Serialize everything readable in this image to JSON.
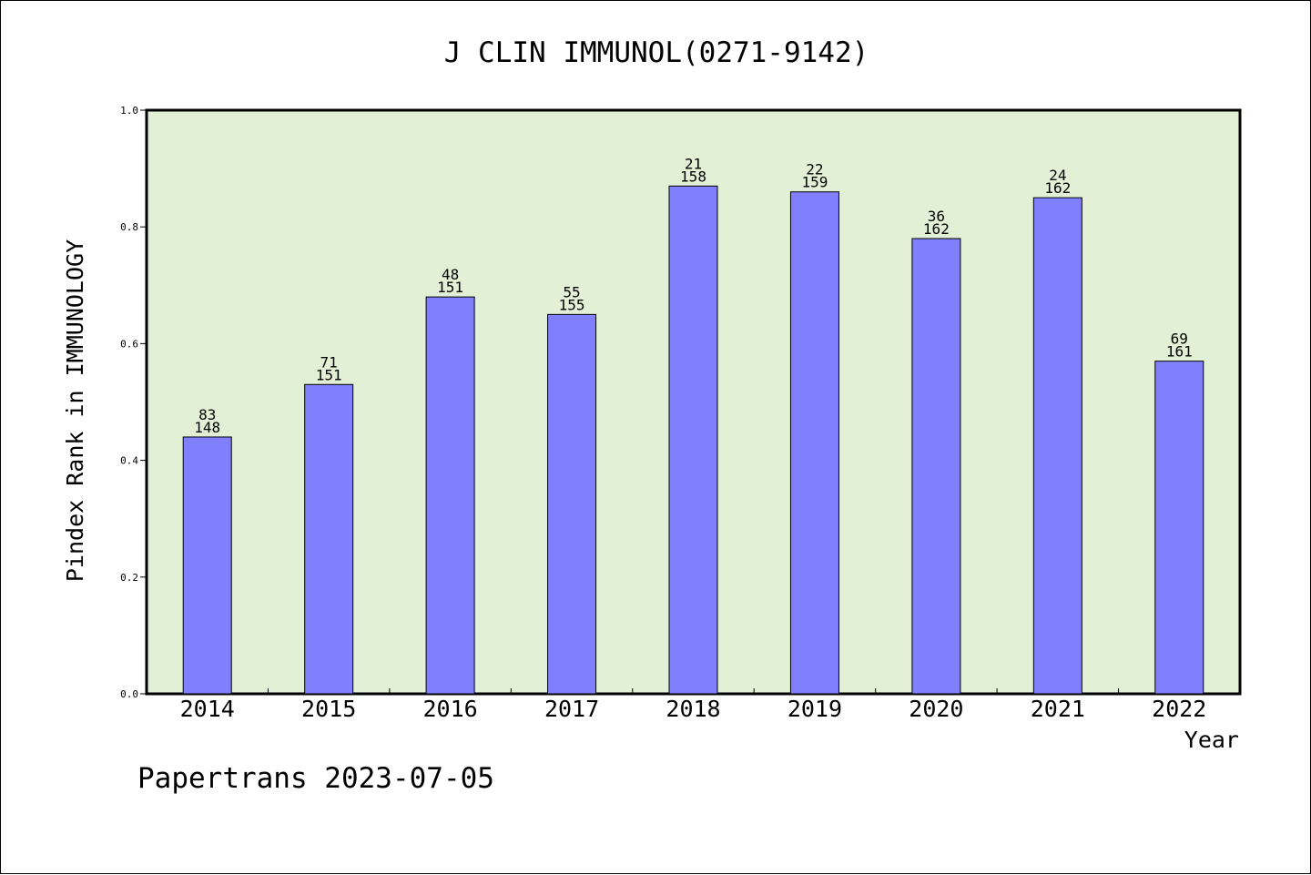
{
  "colors": {
    "plot_background": "#e2f0d6",
    "bar_fill": "#8080ff",
    "bar_stroke": "#000000",
    "axis": "#000000"
  },
  "chart_data": {
    "type": "bar",
    "title": "J CLIN IMMUNOL(0271-9142)",
    "xlabel": "Year",
    "ylabel": "Pindex Rank in IMMUNOLOGY",
    "ylim": [
      0,
      1.0
    ],
    "yticks": [
      "0.0",
      "0.2",
      "0.4",
      "0.6",
      "0.8",
      "1.0"
    ],
    "categories": [
      "2014",
      "2015",
      "2016",
      "2017",
      "2018",
      "2019",
      "2020",
      "2021",
      "2022"
    ],
    "values": [
      0.44,
      0.53,
      0.68,
      0.65,
      0.87,
      0.86,
      0.78,
      0.85,
      0.57
    ],
    "rank_labels": [
      "83",
      "71",
      "48",
      "55",
      "21",
      "22",
      "36",
      "24",
      "69"
    ],
    "total_labels": [
      "148",
      "151",
      "151",
      "155",
      "158",
      "159",
      "162",
      "162",
      "161"
    ],
    "grid": false,
    "legend": "none"
  },
  "footer": {
    "credit": "Papertrans 2023-07-05"
  }
}
